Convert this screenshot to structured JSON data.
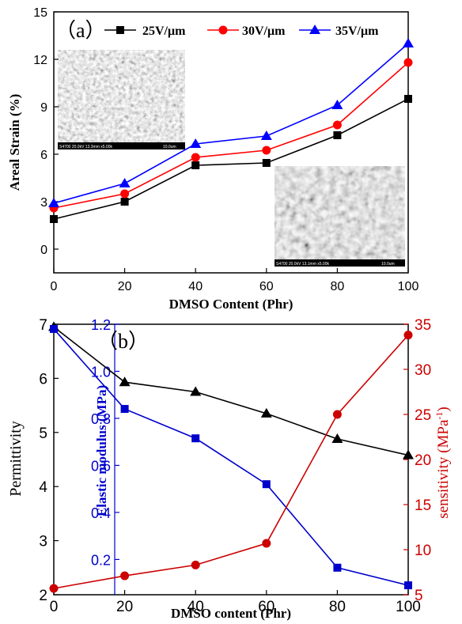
{
  "chart_data": [
    {
      "panel_label": "（a）",
      "type": "line",
      "xlabel": "DMSO Content (Phr)",
      "ylabel": "Areal Strain (%)",
      "x": [
        0,
        20,
        40,
        60,
        80,
        100
      ],
      "xlim": [
        0,
        100
      ],
      "ylim": [
        -1.5,
        15
      ],
      "xticks": [
        0,
        20,
        40,
        60,
        80,
        100
      ],
      "yticks": [
        0,
        3,
        6,
        9,
        12,
        15
      ],
      "legend_position": "top",
      "series": [
        {
          "name": "25V/μm",
          "marker": "square",
          "color": "#000000",
          "values": [
            1.9,
            3.0,
            5.3,
            5.45,
            7.2,
            9.5
          ]
        },
        {
          "name": "30V/μm",
          "marker": "circle",
          "color": "#ff0000",
          "values": [
            2.6,
            3.5,
            5.8,
            6.25,
            7.85,
            11.8
          ]
        },
        {
          "name": "35V/μm",
          "marker": "triangle",
          "color": "#0000ff",
          "values": [
            2.9,
            4.15,
            6.65,
            7.15,
            9.1,
            13.0
          ]
        }
      ],
      "insets": [
        {
          "name": "sem-image-top",
          "caption": "S4700 20.0kV 13.3mm x5.00k",
          "scale": "10.0um"
        },
        {
          "name": "sem-image-bottom",
          "caption": "S4700 20.0kV 13.1mm x5.00k",
          "scale": "10.0um"
        }
      ]
    },
    {
      "panel_label": "（b）",
      "type": "line",
      "xlabel": "DMSO content (Phr)",
      "x": [
        0,
        20,
        40,
        60,
        80,
        100
      ],
      "xlim": [
        0,
        100
      ],
      "xticks": [
        0,
        20,
        40,
        60,
        80,
        100
      ],
      "axes": {
        "left": {
          "label": "Permittivity",
          "ylim": [
            2,
            7
          ],
          "ticks": [
            2,
            3,
            4,
            5,
            6,
            7
          ],
          "color": "#000000"
        },
        "left_inner": {
          "label": "Elastic modulus (MPa)",
          "ylim": [
            0.05,
            1.2
          ],
          "ticks": [
            0.2,
            0.4,
            0.6,
            0.8,
            1.0,
            1.2
          ],
          "color": "#0000cc"
        },
        "right": {
          "label": "sensitivity (MPa",
          "label_sup": "-1",
          "label_end": ")",
          "ylim": [
            5,
            35
          ],
          "ticks": [
            5,
            10,
            15,
            20,
            25,
            30,
            35
          ],
          "color": "#cc0000"
        }
      },
      "series": [
        {
          "axis": "left",
          "marker": "triangle",
          "color": "#000000",
          "values": [
            6.95,
            5.93,
            5.75,
            5.35,
            4.88,
            4.58
          ]
        },
        {
          "axis": "left_inner",
          "marker": "square",
          "color": "#0000cc",
          "values": [
            1.18,
            0.84,
            0.715,
            0.52,
            0.165,
            0.09
          ]
        },
        {
          "axis": "right",
          "marker": "circle",
          "color": "#cc0000",
          "values": [
            5.7,
            7.1,
            8.3,
            10.7,
            25.0,
            33.8
          ]
        }
      ]
    }
  ]
}
